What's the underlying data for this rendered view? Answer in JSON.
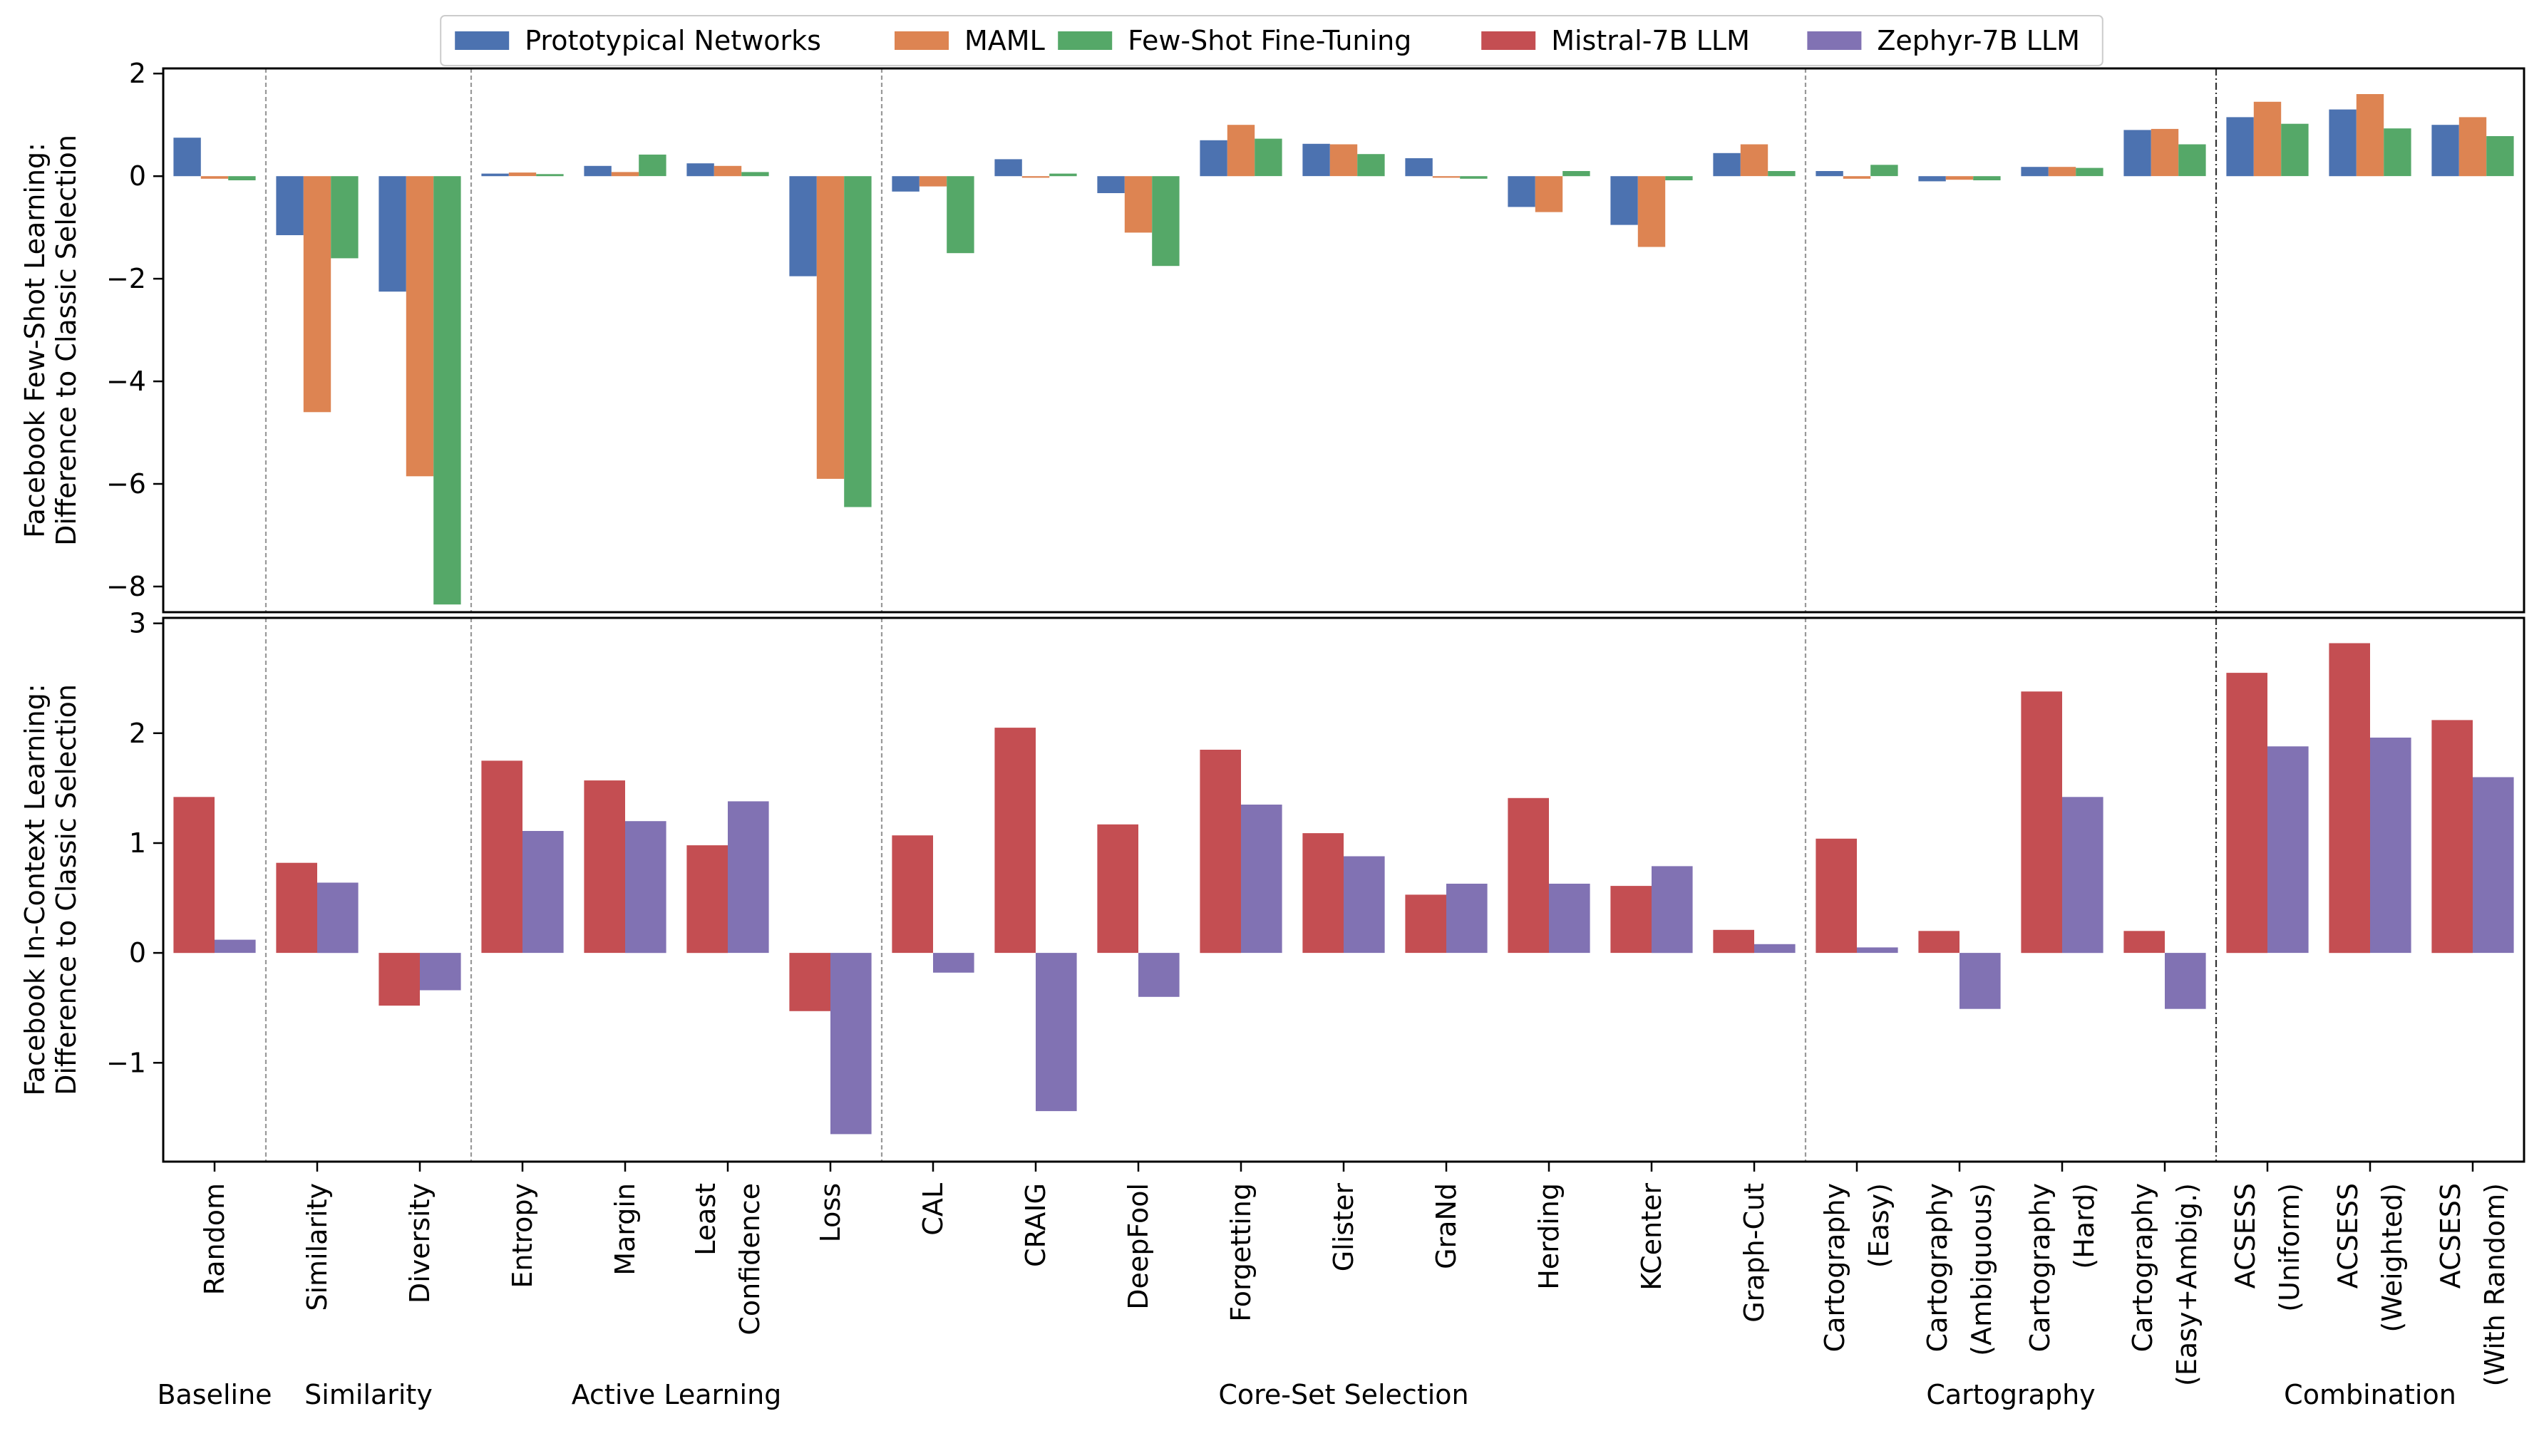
{
  "chart_data": {
    "type": "bar",
    "legend": {
      "placement": "top-center",
      "entries": [
        {
          "name": "Prototypical Networks",
          "color": "#4C72B0"
        },
        {
          "name": "MAML",
          "color": "#DD8452"
        },
        {
          "name": "Few-Shot Fine-Tuning",
          "color": "#55A868"
        },
        {
          "name": "Mistral-7B LLM",
          "color": "#C44E52"
        },
        {
          "name": "Zephyr-7B LLM",
          "color": "#8172B3"
        }
      ]
    },
    "categories": [
      {
        "lines": [
          "Random"
        ]
      },
      {
        "lines": [
          "Similarity"
        ]
      },
      {
        "lines": [
          "Diversity"
        ]
      },
      {
        "lines": [
          "Entropy"
        ]
      },
      {
        "lines": [
          "Margin"
        ]
      },
      {
        "lines": [
          "Least",
          "Confidence"
        ]
      },
      {
        "lines": [
          "Loss"
        ]
      },
      {
        "lines": [
          "CAL"
        ]
      },
      {
        "lines": [
          "CRAIG"
        ]
      },
      {
        "lines": [
          "DeepFool"
        ]
      },
      {
        "lines": [
          "Forgetting"
        ]
      },
      {
        "lines": [
          "Glister"
        ]
      },
      {
        "lines": [
          "GraNd"
        ]
      },
      {
        "lines": [
          "Herding"
        ]
      },
      {
        "lines": [
          "KCenter"
        ]
      },
      {
        "lines": [
          "Graph-Cut"
        ]
      },
      {
        "lines": [
          "Cartography",
          "(Easy)"
        ]
      },
      {
        "lines": [
          "Cartography",
          "(Ambiguous)"
        ]
      },
      {
        "lines": [
          "Cartography",
          "(Hard)"
        ]
      },
      {
        "lines": [
          "Cartography",
          "(Easy+Ambig.)"
        ]
      },
      {
        "lines": [
          "ACSESS",
          "(Uniform)"
        ]
      },
      {
        "lines": [
          "ACSESS",
          "(Weighted)"
        ]
      },
      {
        "lines": [
          "ACSESS",
          "(With Random)"
        ]
      }
    ],
    "groups": [
      {
        "label": "Baseline",
        "start": 0,
        "end": 0
      },
      {
        "label": "Similarity",
        "start": 1,
        "end": 2
      },
      {
        "label": "Active Learning",
        "start": 3,
        "end": 6
      },
      {
        "label": "Core-Set Selection",
        "start": 7,
        "end": 15
      },
      {
        "label": "Cartography",
        "start": 16,
        "end": 19
      },
      {
        "label": "Combination",
        "start": 20,
        "end": 22
      }
    ],
    "separators": [
      {
        "after": 0,
        "style": "dashed"
      },
      {
        "after": 2,
        "style": "dashed"
      },
      {
        "after": 6,
        "style": "dashed"
      },
      {
        "after": 15,
        "style": "dashed"
      },
      {
        "after": 19,
        "style": "dashdot"
      }
    ],
    "panels": [
      {
        "ylabel": [
          "Facebook Few-Shot Learning:",
          "Difference to Classic Selection"
        ],
        "ylim": [
          -8.5,
          2.1
        ],
        "yticks": [
          2,
          0,
          -2,
          -4,
          -6,
          -8
        ],
        "series": [
          {
            "name": "Prototypical Networks",
            "color": "#4C72B0",
            "values": [
              0.75,
              -1.15,
              -2.25,
              0.05,
              0.2,
              0.25,
              -1.95,
              -0.3,
              0.33,
              -0.33,
              0.7,
              0.63,
              0.35,
              -0.6,
              -0.95,
              0.45,
              0.1,
              -0.1,
              0.18,
              0.9,
              1.15,
              1.3,
              1.0
            ]
          },
          {
            "name": "MAML",
            "color": "#DD8452",
            "values": [
              -0.05,
              -4.6,
              -5.85,
              0.07,
              0.08,
              0.2,
              -5.9,
              -0.2,
              -0.03,
              -1.1,
              1.0,
              0.62,
              -0.03,
              -0.7,
              -1.38,
              0.62,
              -0.05,
              -0.07,
              0.18,
              0.92,
              1.45,
              1.6,
              1.15
            ]
          },
          {
            "name": "Few-Shot Fine-Tuning",
            "color": "#55A868",
            "values": [
              -0.08,
              -1.6,
              -8.35,
              0.04,
              0.42,
              0.08,
              -6.45,
              -1.5,
              0.05,
              -1.75,
              0.73,
              0.43,
              -0.05,
              0.1,
              -0.08,
              0.1,
              0.22,
              -0.08,
              0.16,
              0.62,
              1.02,
              0.93,
              0.78
            ]
          }
        ]
      },
      {
        "ylabel": [
          "Facebook In-Context Learning:",
          "Difference to Classic Selection"
        ],
        "ylim": [
          -1.9,
          3.05
        ],
        "yticks": [
          3,
          2,
          1,
          0,
          -1
        ],
        "series": [
          {
            "name": "Mistral-7B LLM",
            "color": "#C44E52",
            "values": [
              1.42,
              0.82,
              -0.48,
              1.75,
              1.57,
              0.98,
              -0.53,
              1.07,
              2.05,
              1.17,
              1.85,
              1.09,
              0.53,
              1.41,
              0.61,
              0.21,
              1.04,
              0.2,
              2.38,
              0.2,
              2.55,
              2.82,
              2.12
            ]
          },
          {
            "name": "Zephyr-7B LLM",
            "color": "#8172B3",
            "values": [
              0.12,
              0.64,
              -0.34,
              1.11,
              1.2,
              1.38,
              -1.65,
              -0.18,
              -1.44,
              -0.4,
              1.35,
              0.88,
              0.63,
              0.63,
              0.79,
              0.08,
              0.05,
              -0.51,
              1.42,
              -0.51,
              1.88,
              1.96,
              1.6
            ]
          }
        ]
      }
    ]
  }
}
